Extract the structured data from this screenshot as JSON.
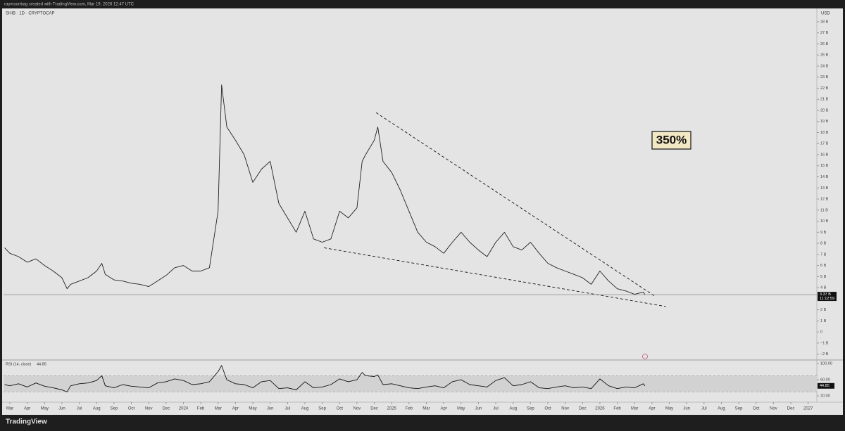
{
  "header": {
    "watermark": "raymoonbag created with TradingView.com, Mar 19, 2026 12:47 UTC",
    "symbol": "SHIB · 1D · CRYPTOCAP",
    "currency": "USD"
  },
  "chart_data": [
    {
      "type": "line",
      "color": "#222222",
      "x": [
        -0.3,
        0,
        0.5,
        1,
        1.5,
        2,
        2.5,
        3,
        3.3,
        3.5,
        4,
        4.5,
        5,
        5.3,
        5.5,
        6,
        6.5,
        7,
        7.5,
        8,
        8.5,
        9,
        9.5,
        10,
        10.5,
        11,
        11.5,
        12,
        12.2,
        12.5,
        13,
        13.5,
        14,
        14.5,
        15,
        15.5,
        16,
        16.5,
        17,
        17.5,
        18,
        18.5,
        19,
        19.5,
        20,
        20.3,
        20.5,
        21,
        21.2,
        21.5,
        22,
        22.5,
        23,
        23.5,
        24,
        24.5,
        25,
        25.5,
        26,
        26.5,
        27,
        27.5,
        28,
        28.5,
        29,
        29.5,
        30,
        30.5,
        31,
        31.5,
        32,
        32.5,
        33,
        33.5,
        34,
        34.5,
        35,
        35.5,
        36,
        36.5,
        36.6
      ],
      "values": [
        7.6,
        7.1,
        6.8,
        6.3,
        6.6,
        6.0,
        5.5,
        4.9,
        3.9,
        4.3,
        4.6,
        4.9,
        5.5,
        6.2,
        5.2,
        4.7,
        4.6,
        4.4,
        4.3,
        4.1,
        4.6,
        5.1,
        5.8,
        6.0,
        5.5,
        5.5,
        5.8,
        10.9,
        22.3,
        18.5,
        17.3,
        16.0,
        13.5,
        14.7,
        15.4,
        11.6,
        10.3,
        9.0,
        10.9,
        8.4,
        8.1,
        8.4,
        10.9,
        10.3,
        11.2,
        15.4,
        16.0,
        17.3,
        18.5,
        15.4,
        14.4,
        12.8,
        10.9,
        9.0,
        8.1,
        7.7,
        7.1,
        8.1,
        9.0,
        8.1,
        7.4,
        6.8,
        8.1,
        9.0,
        7.7,
        7.4,
        8.1,
        7.1,
        6.2,
        5.8,
        5.5,
        5.2,
        4.9,
        4.3,
        5.5,
        4.6,
        3.9,
        3.7,
        3.4,
        3.6,
        3.37
      ],
      "value_labels": [
        null,
        null,
        null,
        null,
        null,
        null,
        null,
        null,
        null,
        null,
        null,
        null,
        null,
        null,
        null,
        null,
        null,
        null,
        null,
        null,
        null,
        null,
        null,
        null,
        null,
        null,
        null,
        null,
        null,
        null,
        null,
        null,
        null,
        null,
        null,
        null,
        null,
        null,
        null,
        null,
        null,
        null,
        null,
        null,
        null,
        null,
        null,
        null,
        null,
        null,
        null,
        null,
        null,
        null,
        null,
        null,
        null,
        null,
        null,
        null,
        null,
        null,
        null,
        null,
        null,
        null,
        null,
        null,
        null,
        null,
        null,
        null,
        null,
        null,
        null,
        null,
        null,
        null,
        null,
        null,
        "3.37 B"
      ],
      "countdown": "11:12:59",
      "xlim": [
        -0.365,
        46.5
      ],
      "xticks": [
        {
          "value": 0,
          "label": "Mar"
        },
        {
          "value": 1,
          "label": "Apr"
        },
        {
          "value": 2,
          "label": "May"
        },
        {
          "value": 3,
          "label": "Jun"
        },
        {
          "value": 4,
          "label": "Jul"
        },
        {
          "value": 5,
          "label": "Aug"
        },
        {
          "value": 6,
          "label": "Sep"
        },
        {
          "value": 7,
          "label": "Oct"
        },
        {
          "value": 8,
          "label": "Nov"
        },
        {
          "value": 9,
          "label": "Dec"
        },
        {
          "value": 10,
          "label": "2024"
        },
        {
          "value": 11,
          "label": "Feb"
        },
        {
          "value": 12,
          "label": "Mar"
        },
        {
          "value": 13,
          "label": "Apr"
        },
        {
          "value": 14,
          "label": "May"
        },
        {
          "value": 15,
          "label": "Jun"
        },
        {
          "value": 16,
          "label": "Jul"
        },
        {
          "value": 17,
          "label": "Aug"
        },
        {
          "value": 18,
          "label": "Sep"
        },
        {
          "value": 19,
          "label": "Oct"
        },
        {
          "value": 20,
          "label": "Nov"
        },
        {
          "value": 21,
          "label": "Dec"
        },
        {
          "value": 22,
          "label": "2025"
        },
        {
          "value": 23,
          "label": "Feb"
        },
        {
          "value": 24,
          "label": "Mar"
        },
        {
          "value": 25,
          "label": "Apr"
        },
        {
          "value": 26,
          "label": "May"
        },
        {
          "value": 27,
          "label": "Jun"
        },
        {
          "value": 28,
          "label": "Jul"
        },
        {
          "value": 29,
          "label": "Aug"
        },
        {
          "value": 30,
          "label": "Sep"
        },
        {
          "value": 31,
          "label": "Oct"
        },
        {
          "value": 32,
          "label": "Nov"
        },
        {
          "value": 33,
          "label": "Dec"
        },
        {
          "value": 34,
          "label": "2026"
        },
        {
          "value": 35,
          "label": "Feb"
        },
        {
          "value": 36,
          "label": "Mar"
        },
        {
          "value": 37,
          "label": "Apr"
        },
        {
          "value": 38,
          "label": "May"
        },
        {
          "value": 39,
          "label": "Jun"
        },
        {
          "value": 40,
          "label": "Jul"
        },
        {
          "value": 41,
          "label": "Aug"
        },
        {
          "value": 42,
          "label": "Sep"
        },
        {
          "value": 43,
          "label": "Oct"
        },
        {
          "value": 44,
          "label": "Nov"
        },
        {
          "value": 45,
          "label": "Dec"
        },
        {
          "value": 46,
          "label": "2027"
        }
      ],
      "ylim": [
        -2.4,
        29.2
      ],
      "yticks": [
        {
          "value": 28,
          "label": "28 B"
        },
        {
          "value": 27,
          "label": "27 B"
        },
        {
          "value": 26,
          "label": "26 B"
        },
        {
          "value": 25,
          "label": "25 B"
        },
        {
          "value": 24,
          "label": "24 B"
        },
        {
          "value": 23,
          "label": "23 B"
        },
        {
          "value": 22,
          "label": "22 B"
        },
        {
          "value": 21,
          "label": "21 B"
        },
        {
          "value": 20,
          "label": "20 B"
        },
        {
          "value": 19,
          "label": "19 B"
        },
        {
          "value": 18,
          "label": "18 B"
        },
        {
          "value": 17,
          "label": "17 B"
        },
        {
          "value": 16,
          "label": "16 B"
        },
        {
          "value": 15,
          "label": "15 B"
        },
        {
          "value": 14,
          "label": "14 B"
        },
        {
          "value": 13,
          "label": "13 B"
        },
        {
          "value": 12,
          "label": "12 B"
        },
        {
          "value": 11,
          "label": "11 B"
        },
        {
          "value": 10,
          "label": "10 B"
        },
        {
          "value": 9,
          "label": "9 B"
        },
        {
          "value": 8,
          "label": "8 B"
        },
        {
          "value": 7,
          "label": "7 B"
        },
        {
          "value": 6,
          "label": "6 B"
        },
        {
          "value": 5,
          "label": "5 B"
        },
        {
          "value": 4,
          "label": "4 B"
        },
        {
          "value": 2,
          "label": "2 B"
        },
        {
          "value": 1,
          "label": "1 B"
        },
        0,
        {
          "value": -1,
          "label": "−1 B"
        },
        {
          "value": -2,
          "label": "−2 B"
        }
      ],
      "trendlines": [
        {
          "x": [
            21.1,
            37.2
          ],
          "y": [
            19.8,
            3.2
          ]
        },
        {
          "x": [
            18.1,
            37.8
          ],
          "y": [
            7.6,
            2.3
          ]
        }
      ],
      "annotations": [
        {
          "text": "350%"
        }
      ]
    },
    {
      "type": "line",
      "title": "RSI (14, close)",
      "color": "#111111",
      "x": [
        -0.3,
        0,
        0.5,
        1,
        1.5,
        2,
        2.5,
        3,
        3.3,
        3.5,
        4,
        4.5,
        5,
        5.3,
        5.5,
        6,
        6.5,
        7,
        7.5,
        8,
        8.5,
        9,
        9.5,
        10,
        10.5,
        11,
        11.5,
        12,
        12.2,
        12.5,
        13,
        13.5,
        14,
        14.5,
        15,
        15.5,
        16,
        16.5,
        17,
        17.5,
        18,
        18.5,
        19,
        19.5,
        20,
        20.3,
        20.5,
        21,
        21.2,
        21.5,
        22,
        22.5,
        23,
        23.5,
        24,
        24.5,
        25,
        25.5,
        26,
        26.5,
        27,
        27.5,
        28,
        28.5,
        29,
        29.5,
        30,
        30.5,
        31,
        31.5,
        32,
        32.5,
        33,
        33.5,
        34,
        34.5,
        35,
        35.5,
        36,
        36.5,
        36.6
      ],
      "values": [
        48,
        45,
        50,
        42,
        52,
        44,
        40,
        35,
        30,
        45,
        50,
        52,
        58,
        70,
        45,
        40,
        48,
        44,
        42,
        40,
        52,
        55,
        62,
        58,
        48,
        50,
        55,
        80,
        95,
        60,
        50,
        48,
        40,
        55,
        58,
        38,
        40,
        35,
        55,
        40,
        42,
        48,
        62,
        55,
        60,
        78,
        70,
        68,
        72,
        48,
        50,
        45,
        40,
        38,
        42,
        45,
        40,
        55,
        60,
        48,
        45,
        42,
        58,
        65,
        45,
        48,
        55,
        40,
        38,
        42,
        45,
        40,
        42,
        38,
        62,
        45,
        38,
        42,
        40,
        50,
        44.85
      ],
      "ylim": [
        8,
        107
      ],
      "yticks": [
        {
          "value": 100,
          "label": "100.00"
        },
        {
          "value": 60,
          "label": "60.00"
        },
        {
          "value": 20,
          "label": "20.00"
        }
      ],
      "band": [
        30,
        70
      ]
    }
  ],
  "footer": {
    "brand": "TradingView"
  }
}
